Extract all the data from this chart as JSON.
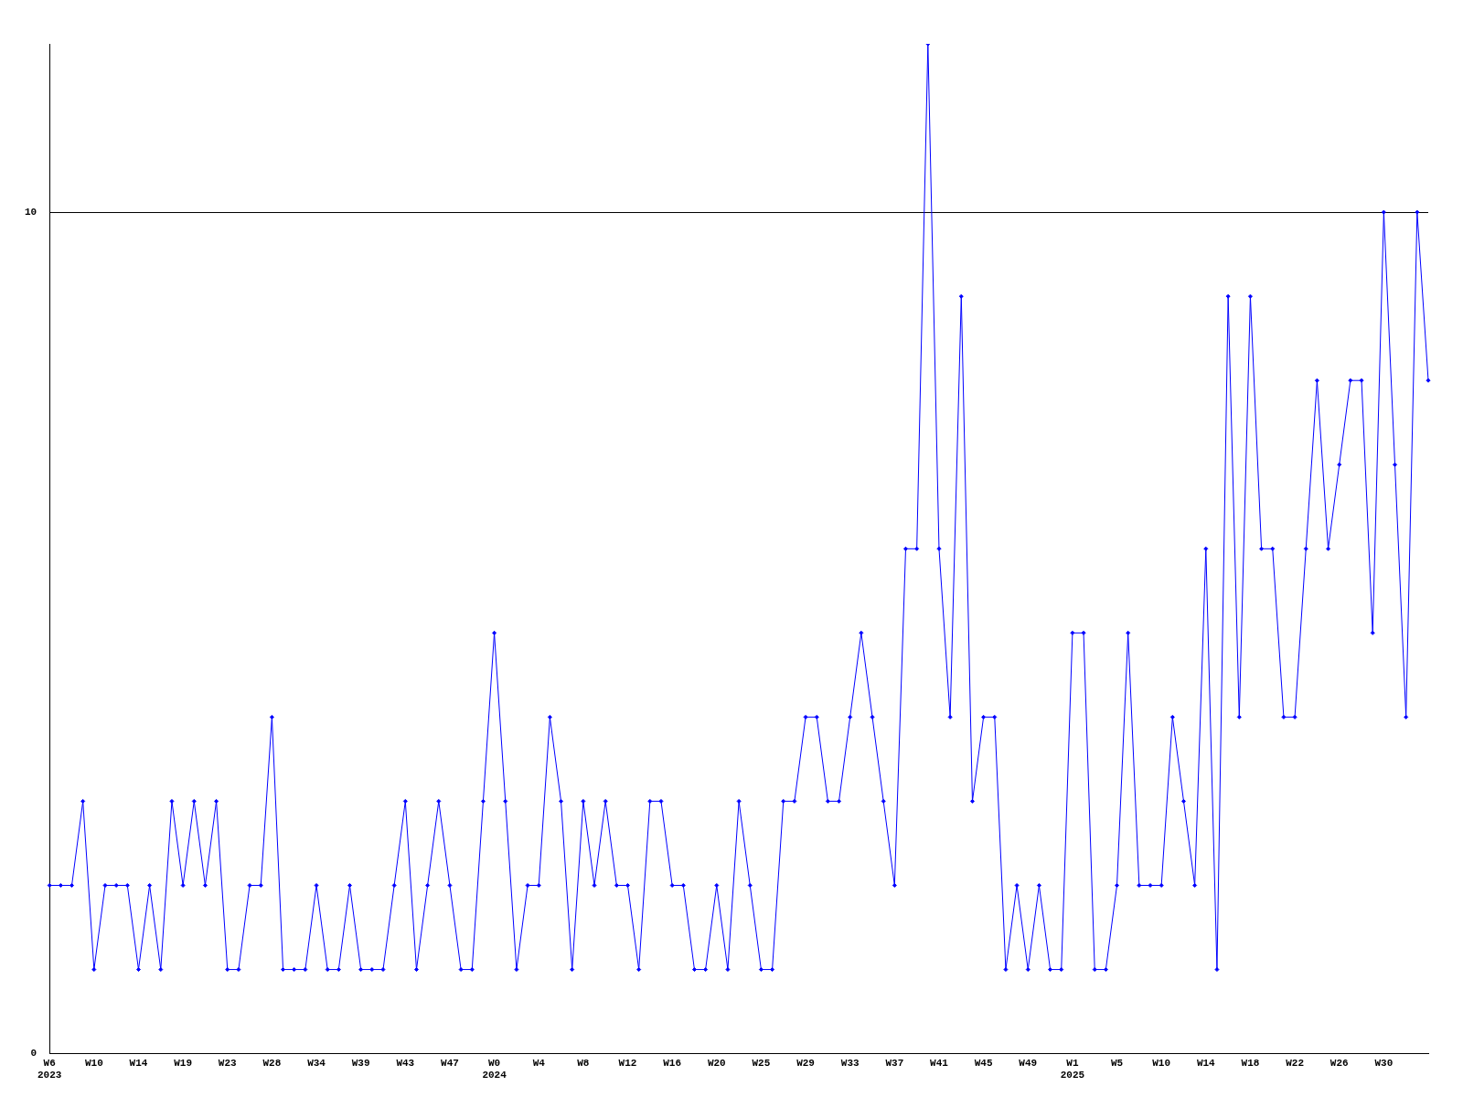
{
  "chart_data": {
    "type": "line",
    "categories": [
      "W6\n2023",
      null,
      null,
      null,
      "W10",
      null,
      null,
      null,
      "W14",
      null,
      null,
      null,
      "W19",
      null,
      null,
      null,
      "W23",
      null,
      null,
      null,
      "W28",
      null,
      null,
      null,
      "W34",
      null,
      null,
      null,
      "W39",
      null,
      null,
      null,
      "W43",
      null,
      null,
      null,
      "W47",
      null,
      null,
      null,
      "W0\n2024",
      null,
      null,
      null,
      "W4",
      null,
      null,
      null,
      "W8",
      null,
      null,
      null,
      "W12",
      null,
      null,
      null,
      "W16",
      null,
      null,
      null,
      "W20",
      null,
      null,
      null,
      "W25",
      null,
      null,
      null,
      "W29",
      null,
      null,
      null,
      "W33",
      null,
      null,
      null,
      "W37",
      null,
      null,
      null,
      "W41",
      null,
      null,
      null,
      "W45",
      null,
      null,
      null,
      "W49",
      null,
      null,
      null,
      "W1\n2025",
      null,
      null,
      null,
      "W5",
      null,
      null,
      null,
      "W10",
      null,
      null,
      null,
      "W14",
      null,
      null,
      null,
      "W18",
      null,
      null,
      null,
      "W22",
      null,
      null,
      null,
      "W26",
      null,
      null,
      null,
      "W30",
      null,
      null,
      null,
      null
    ],
    "series": [
      {
        "color": "#0000ff",
        "values": [
          2,
          2,
          2,
          3,
          1,
          2,
          2,
          2,
          1,
          2,
          1,
          3,
          2,
          3,
          2,
          3,
          1,
          1,
          2,
          2,
          4,
          1,
          1,
          1,
          2,
          1,
          1,
          2,
          1,
          1,
          1,
          2,
          3,
          1,
          2,
          3,
          2,
          1,
          1,
          3,
          5,
          3,
          1,
          2,
          2,
          4,
          3,
          1,
          3,
          2,
          3,
          2,
          2,
          1,
          3,
          3,
          2,
          2,
          1,
          1,
          2,
          1,
          3,
          2,
          1,
          1,
          3,
          3,
          4,
          4,
          3,
          3,
          4,
          5,
          4,
          3,
          2,
          6,
          6,
          12,
          6,
          4,
          9,
          3,
          4,
          4,
          1,
          2,
          1,
          2,
          1,
          1,
          5,
          5,
          1,
          1,
          2,
          5,
          2,
          2,
          2,
          4,
          3,
          2,
          6,
          1,
          9,
          4,
          9,
          6,
          6,
          4,
          4,
          6,
          8,
          6,
          7,
          8,
          8,
          5,
          10,
          7,
          4,
          10,
          8
        ]
      }
    ],
    "ylim": [
      0,
      12
    ],
    "yticks": [
      0,
      10
    ],
    "grid": "y",
    "marker": "diamond",
    "line_style": "solid",
    "legend": false
  }
}
